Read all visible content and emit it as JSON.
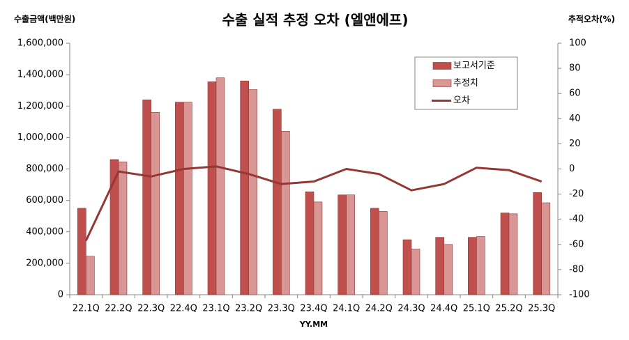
{
  "chart_data": {
    "type": "bar_line",
    "title": "수출 실적 추정 오차 (엘앤에프)",
    "y_label": "수출금액(백만원)",
    "y2_label": "추적오차(%)",
    "x_label": "YY.MM",
    "categories": [
      "22.1Q",
      "22.2Q",
      "22.3Q",
      "22.4Q",
      "23.1Q",
      "23.2Q",
      "23.3Q",
      "23.4Q",
      "24.1Q",
      "24.2Q",
      "24.3Q",
      "24.4Q",
      "25.1Q",
      "25.2Q",
      "25.3Q"
    ],
    "series": [
      {
        "name": "보고서기준",
        "type": "bar",
        "color": "#c0504d",
        "values": [
          550000,
          860000,
          1240000,
          1225000,
          1355000,
          1360000,
          1180000,
          655000,
          635000,
          550000,
          350000,
          365000,
          365000,
          520000,
          650000
        ]
      },
      {
        "name": "추정치",
        "type": "bar",
        "color": "#d99694",
        "values": [
          245000,
          845000,
          1160000,
          1225000,
          1380000,
          1305000,
          1040000,
          590000,
          635000,
          530000,
          290000,
          320000,
          370000,
          515000,
          585000
        ]
      },
      {
        "name": "오차",
        "type": "line",
        "axis": "y2",
        "color": "#953735",
        "values": [
          -57,
          -2,
          -6,
          0,
          2,
          -4,
          -12,
          -10,
          0,
          -4,
          -17,
          -12,
          1,
          -1,
          -10
        ]
      }
    ],
    "ylim": [
      0,
      1600000
    ],
    "yticks": [
      0,
      {
        "value": 200000,
        "label": "200,000"
      },
      {
        "value": 400000,
        "label": "400,000"
      },
      {
        "value": 600000,
        "label": "600,000"
      },
      {
        "value": 800000,
        "label": "800,000"
      },
      {
        "value": 1000000,
        "label": "1,000,000"
      },
      {
        "value": 1200000,
        "label": "1,200,000"
      },
      {
        "value": 1400000,
        "label": "1,400,000"
      },
      {
        "value": 1600000,
        "label": "1,600,000"
      }
    ],
    "y2lim": [
      -100,
      100
    ],
    "y2ticks": [
      -100,
      -80,
      -60,
      -40,
      -20,
      0,
      20,
      40,
      60,
      80,
      100
    ],
    "legend": "upper right"
  }
}
